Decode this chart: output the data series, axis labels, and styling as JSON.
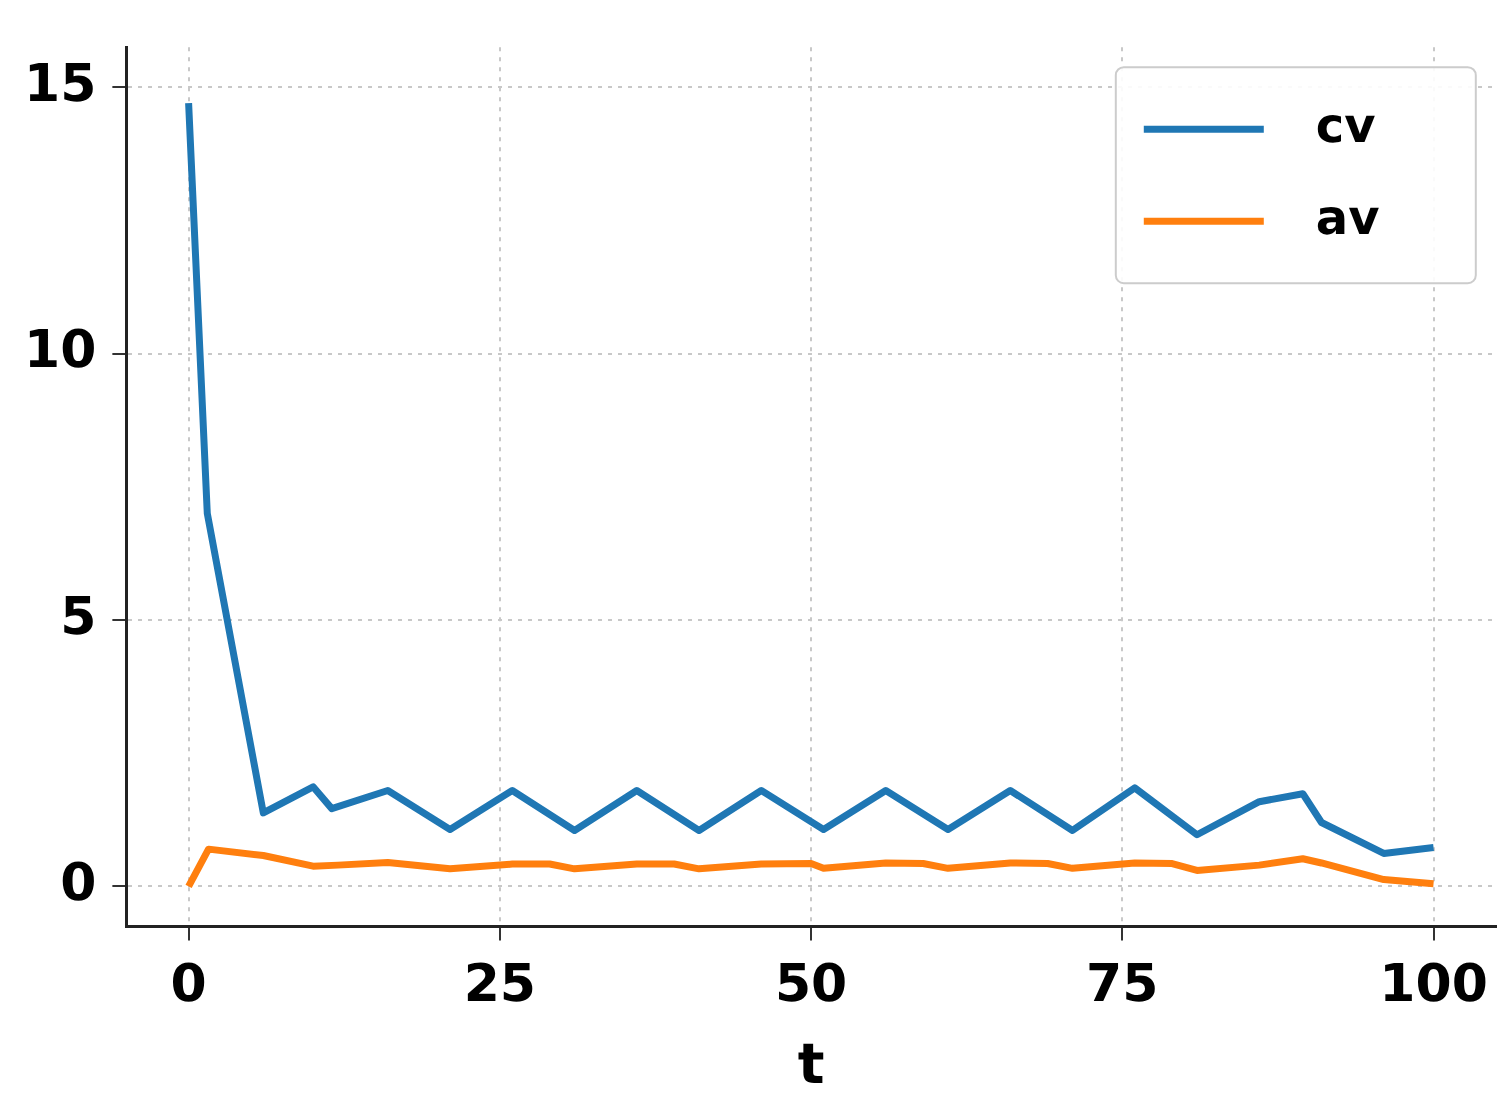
{
  "chart_data": {
    "type": "line",
    "xlabel": "t",
    "xlim": [
      -5,
      105
    ],
    "xticks": [
      0,
      25,
      50,
      75,
      100
    ],
    "ylim": [
      -0.75,
      15.75
    ],
    "yticks": [
      0,
      5,
      10,
      15
    ],
    "grid": true,
    "legend": "top right",
    "line_style": "solid",
    "marker": "none",
    "series": [
      {
        "name": "cv",
        "color": "#1f77b4",
        "x": [
          0,
          1.5,
          6,
          10,
          11.5,
          16,
          21,
          26,
          31,
          36,
          41,
          46,
          51,
          56,
          61,
          66,
          71,
          76,
          81,
          86,
          89.5,
          91,
          96,
          100
        ],
        "values": [
          14.7,
          7.0,
          1.38,
          1.87,
          1.46,
          1.8,
          1.07,
          1.8,
          1.05,
          1.8,
          1.05,
          1.8,
          1.07,
          1.8,
          1.07,
          1.8,
          1.05,
          1.85,
          0.97,
          1.59,
          1.74,
          1.2,
          0.62,
          0.73
        ]
      },
      {
        "name": "av",
        "color": "#ff7f0e",
        "x": [
          0,
          1.6,
          6,
          10,
          12,
          16,
          21,
          26,
          29,
          31,
          36,
          39,
          41,
          46,
          50,
          51,
          56,
          59,
          61,
          66,
          69,
          71,
          76,
          79,
          81,
          86,
          89.5,
          91,
          96,
          100
        ],
        "values": [
          0,
          0.7,
          0.58,
          0.38,
          0.4,
          0.45,
          0.33,
          0.42,
          0.42,
          0.33,
          0.42,
          0.42,
          0.33,
          0.42,
          0.43,
          0.34,
          0.44,
          0.43,
          0.34,
          0.44,
          0.43,
          0.34,
          0.44,
          0.43,
          0.3,
          0.4,
          0.52,
          0.44,
          0.13,
          0.05
        ]
      }
    ]
  }
}
